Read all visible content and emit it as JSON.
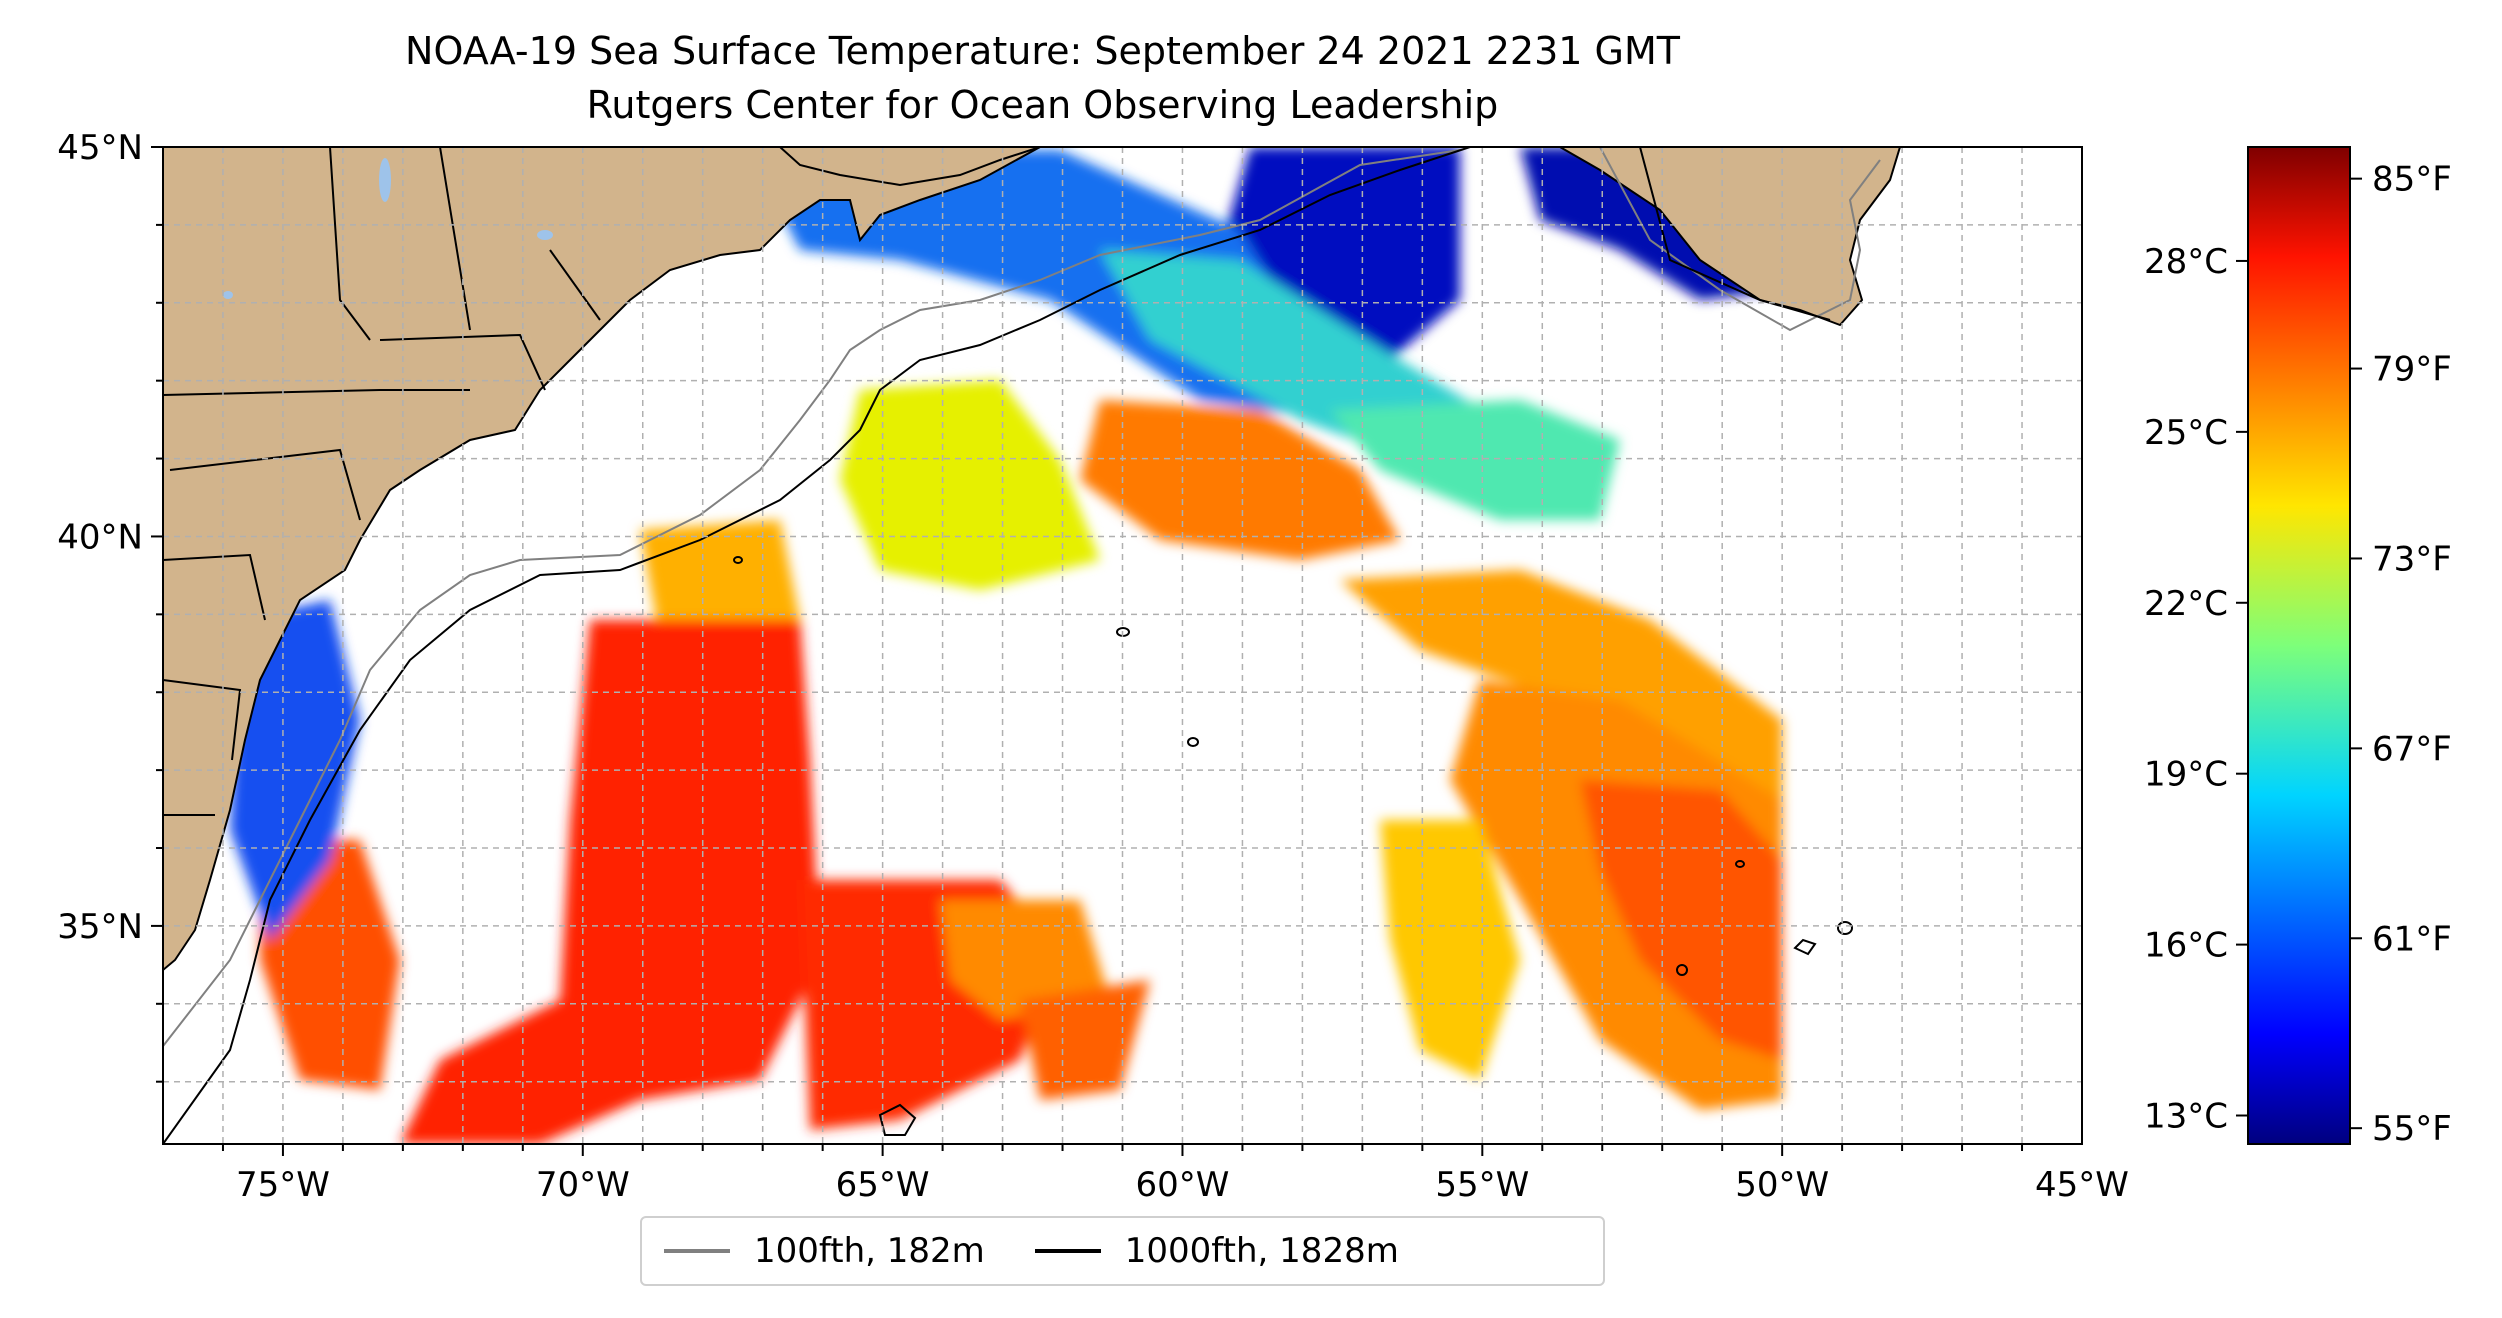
{
  "title": {
    "line1": "NOAA-19 Sea Surface Temperature: September 24 2021 2231 GMT",
    "line2": "Rutgers Center for Ocean Observing Leadership"
  },
  "map": {
    "lon_ticks": [
      "75°W",
      "70°W",
      "65°W",
      "60°W",
      "55°W",
      "50°W",
      "45°W"
    ],
    "lat_ticks": [
      "45°N",
      "40°N",
      "35°N"
    ],
    "extent": {
      "lon_min": -77,
      "lon_max": -45,
      "lat_min": 32.2,
      "lat_max": 45
    },
    "grid": "dashed, 1° spacing",
    "colors": {
      "land": "#d2b48c",
      "lakes": "#9ec3ea",
      "ocean_no_data": "#ffffff"
    }
  },
  "colorbar": {
    "celsius_ticks": [
      "28°C",
      "25°C",
      "22°C",
      "19°C",
      "16°C",
      "13°C"
    ],
    "fahrenheit_ticks": [
      "85°F",
      "79°F",
      "73°F",
      "67°F",
      "61°F",
      "55°F"
    ],
    "range_f": [
      54.5,
      86
    ],
    "colormap": "jet"
  },
  "legend": [
    {
      "label": "100fth, 182m",
      "color": "#808080"
    },
    {
      "label": "1000fth, 1828m",
      "color": "#000000"
    }
  ]
}
